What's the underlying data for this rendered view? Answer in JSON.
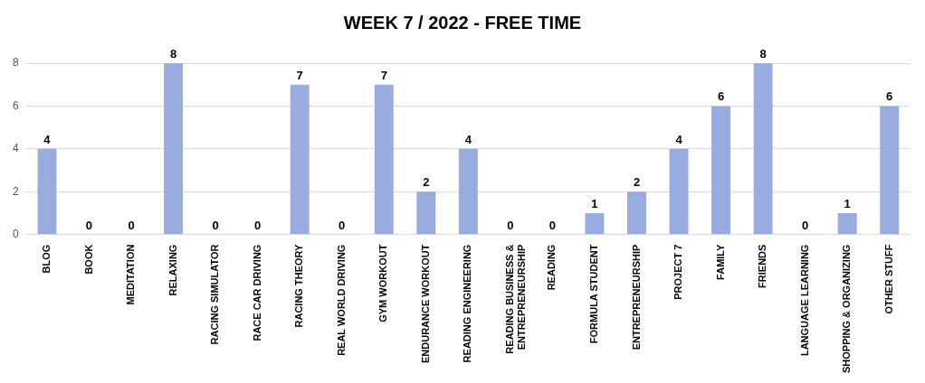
{
  "chart_data": {
    "type": "bar",
    "title": "WEEK 7 / 2022  - FREE TIME",
    "categories": [
      "BLOG",
      "BOOK",
      "MEDITATION",
      "RELAXING",
      "RACING SIMULATOR",
      "RACE CAR DRIVING",
      "RACING THEORY",
      "REAL WORLD DRIVING",
      "GYM WORKOUT",
      "ENDURANCE WORKOUT",
      "READING ENGINEERING",
      "READING BUSINESS & ENTREPRENEURSHIP",
      "READING",
      "FORMULA STUDENT",
      "ENTREPRENEURSHIP",
      "PROJECT 7",
      "FAMILY",
      "FRIENDS",
      "LANGUAGE LEARNING",
      "SHOPPING & ORGANIZING",
      "OTHER STUFF"
    ],
    "values": [
      4,
      0,
      0,
      8,
      0,
      0,
      7,
      0,
      7,
      2,
      4,
      0,
      0,
      1,
      2,
      4,
      6,
      8,
      0,
      1,
      6
    ],
    "color": "#99acdf",
    "ylim": [
      0,
      8
    ],
    "yticks": [
      0,
      2,
      4,
      6,
      8
    ],
    "grid": "y",
    "data_labels": true,
    "legend": false
  }
}
